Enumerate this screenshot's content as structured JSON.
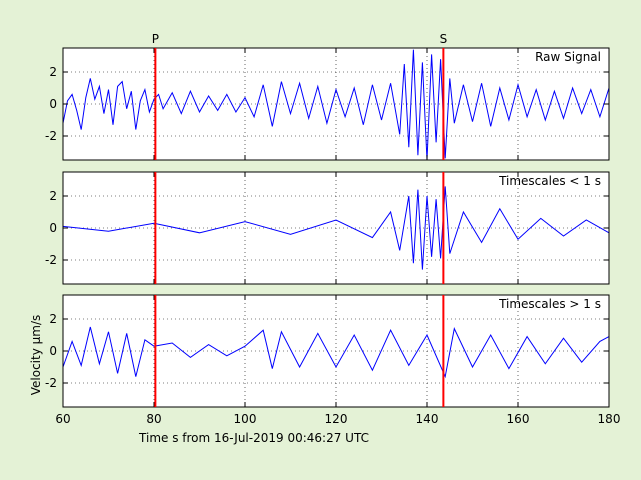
{
  "chart_data": {
    "type": "line",
    "x_range": [
      60,
      180
    ],
    "x_ticks": [
      60,
      80,
      100,
      120,
      140,
      160,
      180
    ],
    "xlabel": "Time s from 16-Jul-2019 00:46:27 UTC",
    "ylabel": "Velocity μm/s",
    "y_range": [
      -3.5,
      3.5
    ],
    "y_ticks": [
      -2,
      0,
      2
    ],
    "grid": true,
    "line_color": "#0000ff",
    "marker_color": "#ff0000",
    "phase_markers": [
      {
        "label": "P",
        "time": 80.3
      },
      {
        "label": "S",
        "time": 143.6
      }
    ],
    "panels": [
      {
        "name": "Raw Signal",
        "series_points": [
          [
            60,
            -1.2
          ],
          [
            61,
            0.2
          ],
          [
            62,
            0.6
          ],
          [
            63,
            -0.4
          ],
          [
            64,
            -1.6
          ],
          [
            65,
            0.4
          ],
          [
            66,
            1.6
          ],
          [
            67,
            0.3
          ],
          [
            68,
            1.1
          ],
          [
            69,
            -0.6
          ],
          [
            70,
            0.9
          ],
          [
            71,
            -1.3
          ],
          [
            72,
            1.1
          ],
          [
            73,
            1.4
          ],
          [
            74,
            -0.3
          ],
          [
            75,
            0.8
          ],
          [
            76,
            -1.6
          ],
          [
            77,
            0.2
          ],
          [
            78,
            0.9
          ],
          [
            79,
            -0.5
          ],
          [
            80,
            0.3
          ],
          [
            81,
            0.6
          ],
          [
            82,
            -0.3
          ],
          [
            84,
            0.7
          ],
          [
            86,
            -0.6
          ],
          [
            88,
            0.8
          ],
          [
            90,
            -0.5
          ],
          [
            92,
            0.5
          ],
          [
            94,
            -0.4
          ],
          [
            96,
            0.6
          ],
          [
            98,
            -0.5
          ],
          [
            100,
            0.4
          ],
          [
            102,
            -0.8
          ],
          [
            104,
            1.2
          ],
          [
            106,
            -1.4
          ],
          [
            108,
            1.4
          ],
          [
            110,
            -0.6
          ],
          [
            112,
            1.3
          ],
          [
            114,
            -0.9
          ],
          [
            116,
            1.1
          ],
          [
            118,
            -1.2
          ],
          [
            120,
            0.9
          ],
          [
            122,
            -0.8
          ],
          [
            124,
            1.0
          ],
          [
            126,
            -1.3
          ],
          [
            128,
            1.2
          ],
          [
            130,
            -1.0
          ],
          [
            132,
            1.3
          ],
          [
            134,
            -1.9
          ],
          [
            135,
            2.5
          ],
          [
            136,
            -2.7
          ],
          [
            137,
            3.4
          ],
          [
            138,
            -3.2
          ],
          [
            139,
            2.6
          ],
          [
            140,
            -3.5
          ],
          [
            141,
            3.1
          ],
          [
            142,
            -2.4
          ],
          [
            143,
            2.8
          ],
          [
            144,
            -3.4
          ],
          [
            145,
            1.6
          ],
          [
            146,
            -1.2
          ],
          [
            148,
            1.2
          ],
          [
            150,
            -1.1
          ],
          [
            152,
            1.3
          ],
          [
            154,
            -1.4
          ],
          [
            156,
            1.0
          ],
          [
            158,
            -1.0
          ],
          [
            160,
            1.2
          ],
          [
            162,
            -0.8
          ],
          [
            164,
            0.9
          ],
          [
            166,
            -1.0
          ],
          [
            168,
            0.8
          ],
          [
            170,
            -0.9
          ],
          [
            172,
            1.0
          ],
          [
            174,
            -0.6
          ],
          [
            176,
            0.9
          ],
          [
            178,
            -0.8
          ],
          [
            180,
            1.0
          ]
        ]
      },
      {
        "name": "Timescales < 1 s",
        "series_points": [
          [
            60,
            0.1
          ],
          [
            70,
            -0.2
          ],
          [
            80,
            0.3
          ],
          [
            90,
            -0.3
          ],
          [
            100,
            0.4
          ],
          [
            110,
            -0.4
          ],
          [
            120,
            0.5
          ],
          [
            128,
            -0.6
          ],
          [
            132,
            1.0
          ],
          [
            134,
            -1.4
          ],
          [
            136,
            2.0
          ],
          [
            137,
            -2.2
          ],
          [
            138,
            2.4
          ],
          [
            139,
            -2.6
          ],
          [
            140,
            2.0
          ],
          [
            141,
            -1.8
          ],
          [
            142,
            1.8
          ],
          [
            143,
            -1.9
          ],
          [
            144,
            2.6
          ],
          [
            145,
            -1.6
          ],
          [
            148,
            1.0
          ],
          [
            152,
            -0.9
          ],
          [
            156,
            1.2
          ],
          [
            160,
            -0.7
          ],
          [
            165,
            0.6
          ],
          [
            170,
            -0.5
          ],
          [
            175,
            0.5
          ],
          [
            180,
            -0.3
          ]
        ]
      },
      {
        "name": "Timescales > 1 s",
        "series_points": [
          [
            60,
            -1.0
          ],
          [
            62,
            0.6
          ],
          [
            64,
            -0.9
          ],
          [
            66,
            1.5
          ],
          [
            68,
            -0.8
          ],
          [
            70,
            1.2
          ],
          [
            72,
            -1.4
          ],
          [
            74,
            1.1
          ],
          [
            76,
            -1.6
          ],
          [
            78,
            0.7
          ],
          [
            80,
            0.3
          ],
          [
            84,
            0.5
          ],
          [
            88,
            -0.4
          ],
          [
            92,
            0.4
          ],
          [
            96,
            -0.3
          ],
          [
            100,
            0.3
          ],
          [
            104,
            1.3
          ],
          [
            106,
            -1.1
          ],
          [
            108,
            1.2
          ],
          [
            112,
            -1.0
          ],
          [
            116,
            1.1
          ],
          [
            120,
            -1.0
          ],
          [
            124,
            1.0
          ],
          [
            128,
            -1.2
          ],
          [
            132,
            1.3
          ],
          [
            136,
            -0.9
          ],
          [
            140,
            1.0
          ],
          [
            144,
            -1.6
          ],
          [
            146,
            1.4
          ],
          [
            150,
            -1.0
          ],
          [
            154,
            1.0
          ],
          [
            158,
            -1.1
          ],
          [
            162,
            0.9
          ],
          [
            166,
            -0.8
          ],
          [
            170,
            0.8
          ],
          [
            174,
            -0.7
          ],
          [
            178,
            0.6
          ],
          [
            180,
            0.9
          ]
        ]
      }
    ]
  }
}
